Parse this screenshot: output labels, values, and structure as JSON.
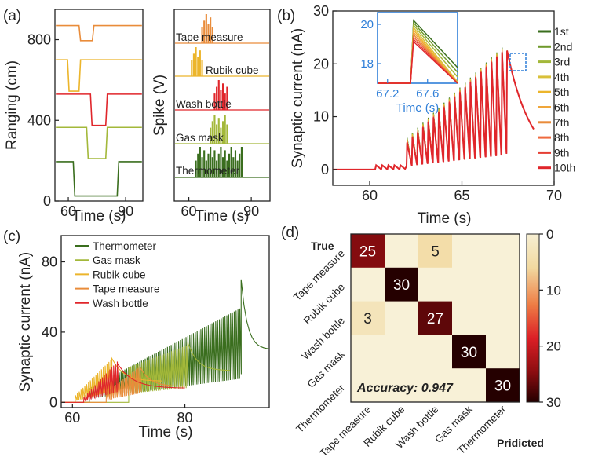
{
  "chart_data": [
    {
      "panel": "(a)",
      "type": "line",
      "title": "",
      "xlabel": "Time (s)",
      "ylabel": "Ranging (cm)",
      "xticks": [
        60,
        90
      ],
      "yticks": [
        0,
        400,
        800
      ],
      "xlim": [
        53,
        99
      ],
      "ylim": [
        0,
        950
      ],
      "series": [
        {
          "name": "Thermometer",
          "color": "#3a6e1e",
          "base": 195,
          "dip": 25,
          "from": 63,
          "to": 86
        },
        {
          "name": "Gas mask",
          "color": "#a3b83a",
          "base": 365,
          "dip": 210,
          "from": 70,
          "to": 80
        },
        {
          "name": "Wash bottle",
          "color": "#e0262b",
          "base": 530,
          "dip": 375,
          "from": 72,
          "to": 80
        },
        {
          "name": "Rubik cube",
          "color": "#ecb52b",
          "base": 700,
          "dip": 545,
          "from": 60,
          "to": 66
        },
        {
          "name": "Tape measure",
          "color": "#e98c3a",
          "base": 870,
          "dip": 795,
          "from": 66,
          "to": 73
        }
      ]
    },
    {
      "panel": "(a)",
      "type": "bar",
      "xlabel": "Time (s)",
      "ylabel": "Spike (V)",
      "xticks": [
        60,
        90
      ],
      "xlim": [
        53,
        99
      ],
      "labels": [
        "Tape measure",
        "Rubik cube",
        "Wash bottle",
        "Gas mask",
        "Thermometer"
      ],
      "colors": [
        "#e98c3a",
        "#ecb52b",
        "#e0262b",
        "#a3b83a",
        "#3a6e1e"
      ],
      "windows": [
        [
          66,
          72
        ],
        [
          61,
          67
        ],
        [
          72,
          79
        ],
        [
          70,
          79
        ],
        [
          63,
          86
        ]
      ]
    },
    {
      "panel": "(b)",
      "type": "line",
      "xlabel": "Time (s)",
      "ylabel": "Synaptic current (nA)",
      "xticks": [
        60,
        65,
        70
      ],
      "yticks": [
        0,
        10,
        20,
        30
      ],
      "xlim": [
        58,
        70
      ],
      "ylim": [
        -3,
        30
      ],
      "legend": [
        "1st",
        "2nd",
        "3rd",
        "4th",
        "5th",
        "6th",
        "7th",
        "8th",
        "9th",
        "10th"
      ],
      "legend_colors": [
        "#3a6e1e",
        "#6f9a2c",
        "#a3b83a",
        "#d9c03a",
        "#ecb52b",
        "#f0a63a",
        "#e98c3a",
        "#ef6a3f",
        "#e53f34",
        "#e0262b"
      ],
      "inset": {
        "xlabel": "Time (s)",
        "xticks": [
          67.2,
          67.6
        ],
        "yticks": [
          18,
          20
        ],
        "xlim": [
          67.1,
          67.9
        ],
        "ylim": [
          17,
          20.6
        ]
      }
    },
    {
      "panel": "(c)",
      "type": "line",
      "xlabel": "Time (s)",
      "ylabel": "Synaptic current (nA)",
      "xticks": [
        60,
        80
      ],
      "yticks": [
        0,
        40,
        80
      ],
      "xlim": [
        58,
        95
      ],
      "ylim": [
        -3,
        95
      ],
      "legend": [
        "Thermometer",
        "Gas mask",
        "Rubik cube",
        "Tape measure",
        "Wash bottle"
      ],
      "legend_colors": [
        "#3a6e1e",
        "#a3b83a",
        "#ecb52b",
        "#e98c3a",
        "#e0262b"
      ]
    },
    {
      "panel": "(d)",
      "type": "heatmap",
      "title": "",
      "ylabel": "True",
      "xlabel": "Pridicted",
      "labels": [
        "Tape measure",
        "Rubik cube",
        "Wash bottle",
        "Gas mask",
        "Thermometer"
      ],
      "matrix": [
        [
          25,
          0,
          5,
          0,
          0
        ],
        [
          0,
          30,
          0,
          0,
          0
        ],
        [
          3,
          0,
          27,
          0,
          0
        ],
        [
          0,
          0,
          0,
          30,
          0
        ],
        [
          0,
          0,
          0,
          0,
          30
        ]
      ],
      "annotation": "Accuracy: 0.947",
      "colorbar_ticks": [
        0,
        10,
        20,
        30
      ]
    }
  ],
  "panels": {
    "a": "(a)",
    "b": "(b)",
    "c": "(c)",
    "d": "(d)"
  }
}
